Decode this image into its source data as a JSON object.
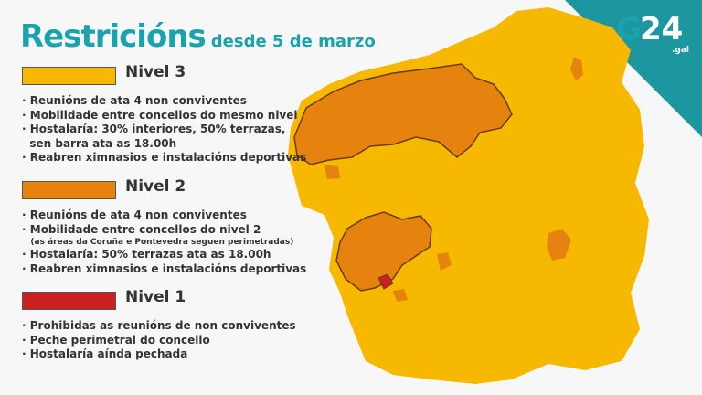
{
  "title": {
    "main": "Restricións",
    "sub": "desde 5 de marzo"
  },
  "logo": {
    "text": "G24",
    "suffix": ".gal"
  },
  "colors": {
    "nivel3": "#f6b800",
    "nivel2": "#e6820e",
    "nivel1": "#cc1f1f",
    "accent": "#1aa3ac"
  },
  "levels": [
    {
      "name": "Nivel 3",
      "items": [
        "Reunións de ata 4 non conviventes",
        "Mobilidade entre concellos do mesmo nivel",
        "Hostalaría: 30% interiores, 50% terrazas,",
        "sen barra ata as 18.00h",
        "Reabren ximnasios e instalacións deportivas"
      ]
    },
    {
      "name": "Nivel 2",
      "items": [
        "Reunións de ata 4 non conviventes",
        "Mobilidade entre concellos do nivel 2",
        "(as áreas da Coruña e Pontevedra seguen perimetradas)",
        "Hostalaría: 50% terrazas ata as 18.00h",
        "Reabren ximnasios e instalacións deportivas"
      ]
    },
    {
      "name": "Nivel 1",
      "items": [
        "Prohibidas as reunións de non conviventes",
        "Peche perimetral do concello",
        "Hostalaría aínda pechada"
      ]
    }
  ]
}
